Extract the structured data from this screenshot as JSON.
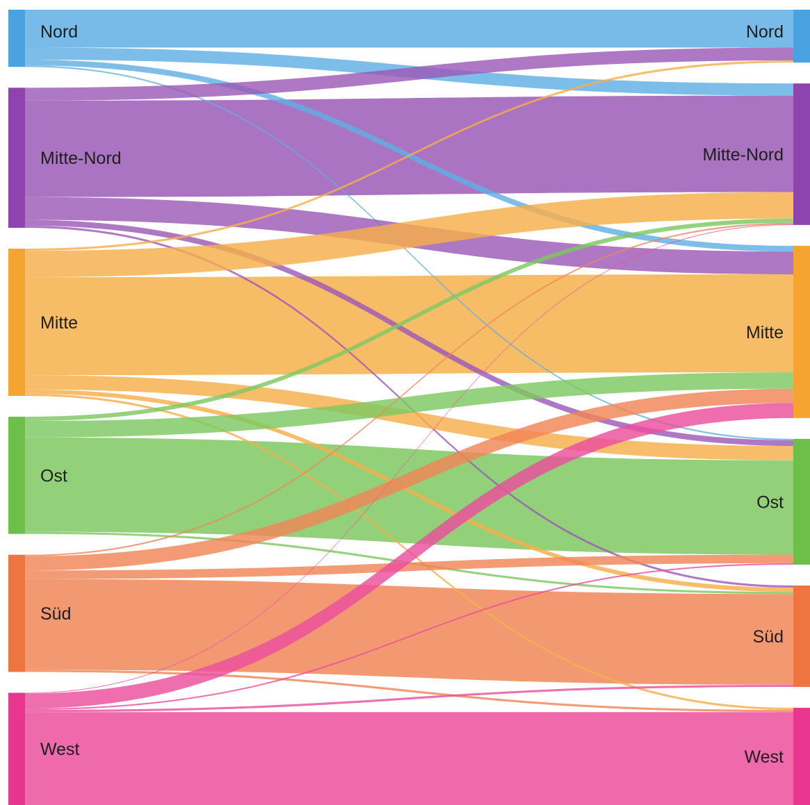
{
  "chart_data": {
    "type": "sankey",
    "title": "",
    "left_nodes": [
      {
        "id": "Nord",
        "label": "Nord",
        "color": "#4aa3e0"
      },
      {
        "id": "Mitte-Nord",
        "label": "Mitte-Nord",
        "color": "#8e44ad"
      },
      {
        "id": "Mitte",
        "label": "Mitte",
        "color": "#f5a431"
      },
      {
        "id": "Ost",
        "label": "Ost",
        "color": "#6cc04a"
      },
      {
        "id": "Süd",
        "label": "Süd",
        "color": "#ee7440"
      },
      {
        "id": "West",
        "label": "West",
        "color": "#e8368e"
      }
    ],
    "right_nodes": [
      {
        "id": "Nord",
        "label": "Nord",
        "color": "#4aa3e0"
      },
      {
        "id": "Mitte-Nord",
        "label": "Mitte-Nord",
        "color": "#8e44ad"
      },
      {
        "id": "Mitte",
        "label": "Mitte",
        "color": "#f5a431"
      },
      {
        "id": "Ost",
        "label": "Ost",
        "color": "#6cc04a"
      },
      {
        "id": "Süd",
        "label": "Süd",
        "color": "#ee7440"
      },
      {
        "id": "West",
        "label": "West",
        "color": "#e8368e"
      }
    ],
    "links": [
      {
        "source": "Nord",
        "target": "Nord",
        "value": 53
      },
      {
        "source": "Nord",
        "target": "Mitte-Nord",
        "value": 17
      },
      {
        "source": "Nord",
        "target": "Mitte",
        "value": 8
      },
      {
        "source": "Nord",
        "target": "Ost",
        "value": 2
      },
      {
        "source": "Mitte-Nord",
        "target": "Nord",
        "value": 18
      },
      {
        "source": "Mitte-Nord",
        "target": "Mitte-Nord",
        "value": 135
      },
      {
        "source": "Mitte-Nord",
        "target": "Mitte",
        "value": 32
      },
      {
        "source": "Mitte-Nord",
        "target": "Ost",
        "value": 8
      },
      {
        "source": "Mitte-Nord",
        "target": "Süd",
        "value": 3
      },
      {
        "source": "Mitte",
        "target": "Nord",
        "value": 3
      },
      {
        "source": "Mitte",
        "target": "Mitte-Nord",
        "value": 37
      },
      {
        "source": "Mitte",
        "target": "Mitte",
        "value": 137
      },
      {
        "source": "Mitte",
        "target": "Ost",
        "value": 20
      },
      {
        "source": "Mitte",
        "target": "Süd",
        "value": 6
      },
      {
        "source": "Mitte",
        "target": "West",
        "value": 3
      },
      {
        "source": "Ost",
        "target": "Mitte-Nord",
        "value": 6
      },
      {
        "source": "Ost",
        "target": "Mitte",
        "value": 23
      },
      {
        "source": "Ost",
        "target": "Ost",
        "value": 132
      },
      {
        "source": "Ost",
        "target": "Süd",
        "value": 3
      },
      {
        "source": "Süd",
        "target": "Mitte-Nord",
        "value": 2
      },
      {
        "source": "Süd",
        "target": "Mitte",
        "value": 20
      },
      {
        "source": "Süd",
        "target": "Ost",
        "value": 12
      },
      {
        "source": "Süd",
        "target": "Süd",
        "value": 127
      },
      {
        "source": "Süd",
        "target": "West",
        "value": 3
      },
      {
        "source": "West",
        "target": "Mitte-Nord",
        "value": 1
      },
      {
        "source": "West",
        "target": "Mitte",
        "value": 21
      },
      {
        "source": "West",
        "target": "Ost",
        "value": 2
      },
      {
        "source": "West",
        "target": "Süd",
        "value": 3
      },
      {
        "source": "West",
        "target": "West",
        "value": 130
      }
    ]
  }
}
